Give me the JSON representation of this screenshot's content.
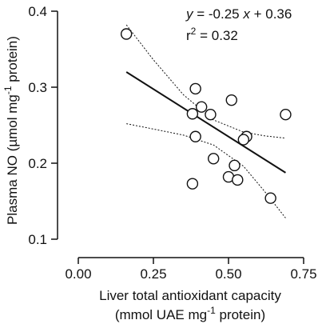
{
  "chart_data": {
    "type": "scatter",
    "title": "",
    "xlabel": {
      "line1": "Liver total antioxidant capacity",
      "line2_before": "(mmol UAE mg",
      "line2_sup": "-1",
      "line2_after": " protein)"
    },
    "ylabel": {
      "before": "Plasma NO (µmol mg",
      "sup": "-1",
      "after": " protein)"
    },
    "xlim": [
      0,
      0.75
    ],
    "ylim": [
      0.1,
      0.4
    ],
    "x_ticks": [
      0.0,
      0.25,
      0.5,
      0.75
    ],
    "x_tick_labels": [
      "0.00",
      "0.25",
      "0.50",
      "0.75"
    ],
    "y_ticks": [
      0.1,
      0.2,
      0.3,
      0.4
    ],
    "y_tick_labels": [
      "0.1",
      "0.2",
      "0.3",
      "0.4"
    ],
    "grid": false,
    "points": [
      {
        "x": 0.16,
        "y": 0.37
      },
      {
        "x": 0.39,
        "y": 0.298
      },
      {
        "x": 0.41,
        "y": 0.274
      },
      {
        "x": 0.38,
        "y": 0.265
      },
      {
        "x": 0.44,
        "y": 0.264
      },
      {
        "x": 0.51,
        "y": 0.283
      },
      {
        "x": 0.39,
        "y": 0.235
      },
      {
        "x": 0.56,
        "y": 0.235
      },
      {
        "x": 0.55,
        "y": 0.231
      },
      {
        "x": 0.69,
        "y": 0.264
      },
      {
        "x": 0.45,
        "y": 0.206
      },
      {
        "x": 0.52,
        "y": 0.197
      },
      {
        "x": 0.5,
        "y": 0.182
      },
      {
        "x": 0.53,
        "y": 0.178
      },
      {
        "x": 0.38,
        "y": 0.173
      },
      {
        "x": 0.64,
        "y": 0.154
      }
    ],
    "regression": {
      "slope": -0.25,
      "intercept": 0.36,
      "x_range": [
        0.16,
        0.69
      ],
      "equation": {
        "y": "y",
        "mid": " = -0.25 ",
        "x": "x",
        "end": " + 0.36"
      },
      "r2": {
        "base": "r",
        "sup": "2",
        "rest": " = 0.32"
      }
    },
    "confidence_band": {
      "upper": [
        [
          0.16,
          0.382
        ],
        [
          0.25,
          0.336
        ],
        [
          0.35,
          0.29
        ],
        [
          0.45,
          0.257
        ],
        [
          0.55,
          0.241
        ],
        [
          0.62,
          0.236
        ],
        [
          0.69,
          0.233
        ]
      ],
      "lower": [
        [
          0.16,
          0.252
        ],
        [
          0.25,
          0.245
        ],
        [
          0.35,
          0.237
        ],
        [
          0.45,
          0.224
        ],
        [
          0.55,
          0.196
        ],
        [
          0.62,
          0.163
        ],
        [
          0.69,
          0.128
        ]
      ]
    }
  }
}
